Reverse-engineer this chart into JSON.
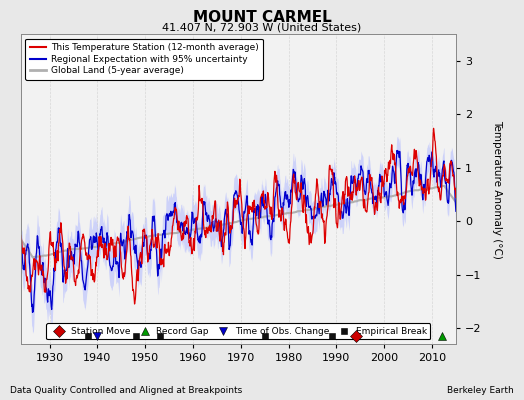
{
  "title": "MOUNT CARMEL",
  "subtitle": "41.407 N, 72.903 W (United States)",
  "xlabel_bottom": "Data Quality Controlled and Aligned at Breakpoints",
  "xlabel_right": "Berkeley Earth",
  "ylabel": "Temperature Anomaly (°C)",
  "xlim": [
    1924,
    2015
  ],
  "ylim": [
    -2.3,
    3.5
  ],
  "yticks": [
    -2,
    -1,
    0,
    1,
    2,
    3
  ],
  "xticks": [
    1930,
    1940,
    1950,
    1960,
    1970,
    1980,
    1990,
    2000,
    2010
  ],
  "background_color": "#e8e8e8",
  "plot_bg_color": "#f2f2f2",
  "red_color": "#dd0000",
  "blue_color": "#0000cc",
  "blue_fill_color": "#b0b8ff",
  "gray_color": "#b0b0b0",
  "station_move_color": "#cc0000",
  "record_gap_color": "#009900",
  "obs_change_color": "#0000cc",
  "empirical_break_color": "#111111",
  "grid_color": "#d0d0d0",
  "seed": 17,
  "start_year": 1924,
  "end_year": 2014,
  "station_moves": [
    1994
  ],
  "record_gaps": [
    2012
  ],
  "obs_changes": [
    1940
  ],
  "empirical_breaks": [
    1938,
    1948,
    1953,
    1975,
    1989
  ],
  "trend_slope": 0.022,
  "red_amplitude": 0.85,
  "blue_amplitude": 0.75,
  "marker_y": -2.15,
  "marker_size": 6
}
